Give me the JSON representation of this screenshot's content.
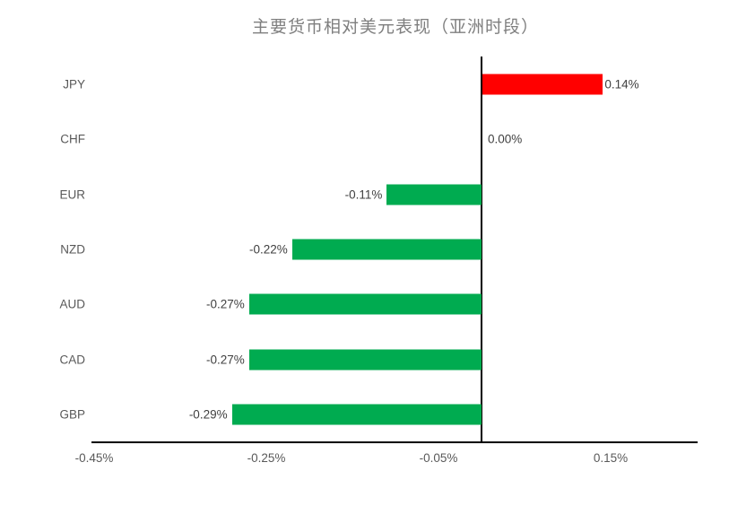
{
  "chart_data": {
    "type": "bar",
    "orientation": "horizontal",
    "title": "主要货币相对美元表现（亚洲时段）",
    "categories": [
      "JPY",
      "CHF",
      "EUR",
      "NZD",
      "AUD",
      "CAD",
      "GBP"
    ],
    "values": [
      0.14,
      0.0,
      -0.11,
      -0.22,
      -0.27,
      -0.27,
      -0.29
    ],
    "value_labels": [
      "0.14%",
      "0.00%",
      "-0.11%",
      "-0.22%",
      "-0.27%",
      "-0.27%",
      "-0.29%"
    ],
    "xlabel": "",
    "ylabel": "",
    "x_axis": {
      "min": -0.45,
      "max": 0.25,
      "ticks": [
        -0.45,
        -0.25,
        -0.05,
        0.15
      ],
      "tick_labels": [
        "-0.45%",
        "-0.25%",
        "-0.05%",
        "0.15%"
      ]
    },
    "legend": "none",
    "grid": "off",
    "colors": {
      "positive_bar": "#ff0000",
      "negative_bar": "#00ab50",
      "axis_line": "#000000",
      "title_text": "#7f7f7f",
      "value_label_text": "#404040",
      "category_text": "#595959",
      "tick_text": "#595959",
      "background": "#ffffff"
    }
  }
}
